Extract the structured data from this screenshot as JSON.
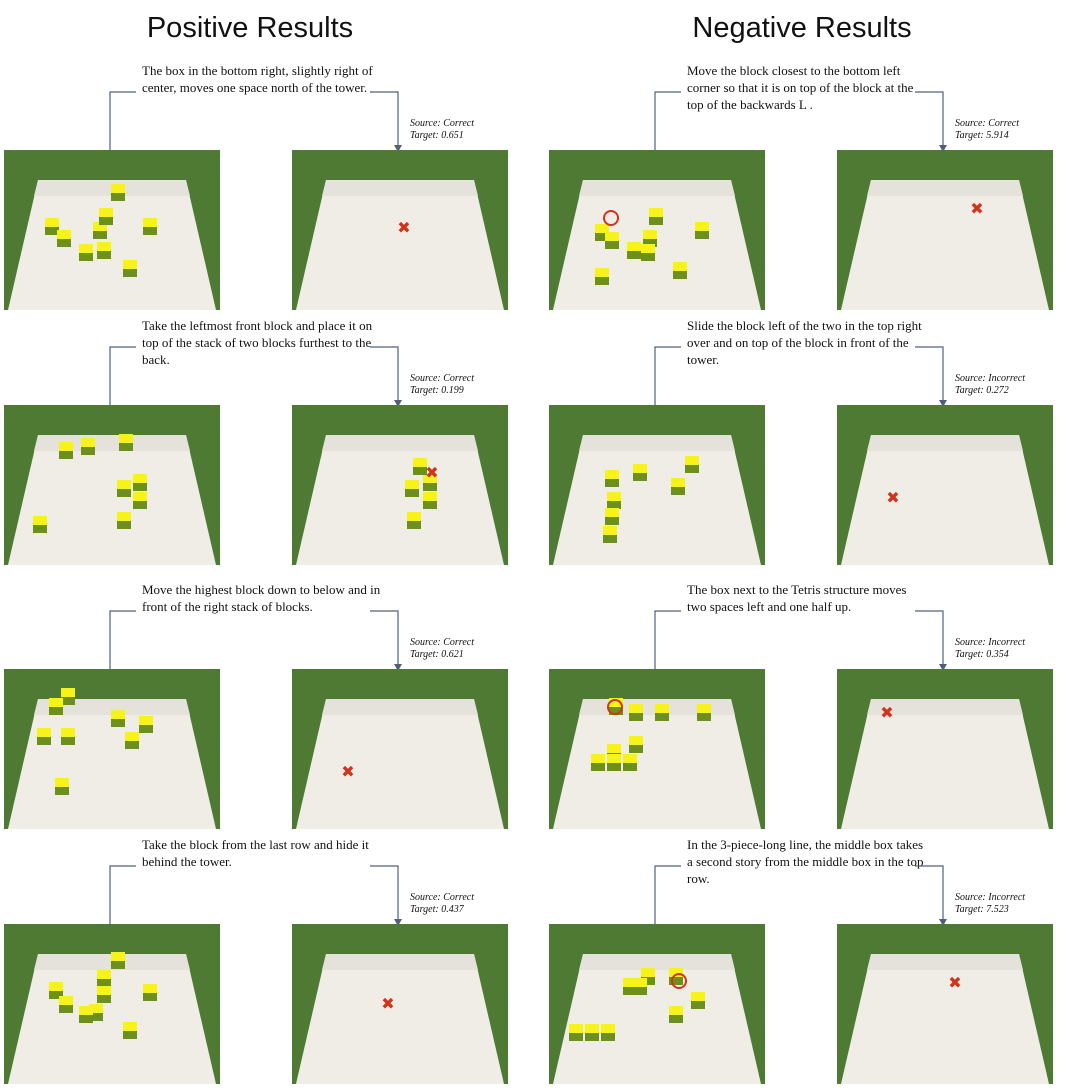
{
  "titles": {
    "positive": "Positive Results",
    "negative": "Negative Results"
  },
  "labels": {
    "source_prefix": "Source:",
    "target_prefix": "Target:"
  },
  "colors": {
    "grass": "#4f7a34",
    "board": "#efede6",
    "block_top": "#f6f21a",
    "block_side": "#6c8f1e",
    "marker": "#d0341c"
  },
  "positive": [
    {
      "instruction": "The box in the bottom right, slightly right of center, moves one space north of the tower.",
      "source": "Correct",
      "target": "0.651",
      "marker": "x"
    },
    {
      "instruction": "Take the leftmost front block and place it on top of the stack of two blocks furthest to the back.",
      "source": "Correct",
      "target": "0.199",
      "marker": "x"
    },
    {
      "instruction": "Move the highest block down to below and in front of the right stack of blocks.",
      "source": "Correct",
      "target": "0.621",
      "marker": "x"
    },
    {
      "instruction": "Take the block from the last row and hide it behind the tower.",
      "source": "Correct",
      "target": "0.437",
      "marker": "x"
    }
  ],
  "negative": [
    {
      "instruction": "Move the block closest to the bottom left corner so that it is on top of the block at the top of the backwards L .",
      "source": "Correct",
      "target": "5.914",
      "marker": "x"
    },
    {
      "instruction": "Slide the block left of the two in the top right over and on top of the block in front of the tower.",
      "source": "Incorrect",
      "target": "0.272",
      "marker": "x"
    },
    {
      "instruction": "The box next to the Tetris structure moves two spaces left and one half up.",
      "source": "Incorrect",
      "target": "0.354",
      "marker": "x"
    },
    {
      "instruction": "In the 3-piece-long line, the middle box takes a second story from the middle box in the top row.",
      "source": "Incorrect",
      "target": "7.523",
      "marker": "x"
    }
  ]
}
